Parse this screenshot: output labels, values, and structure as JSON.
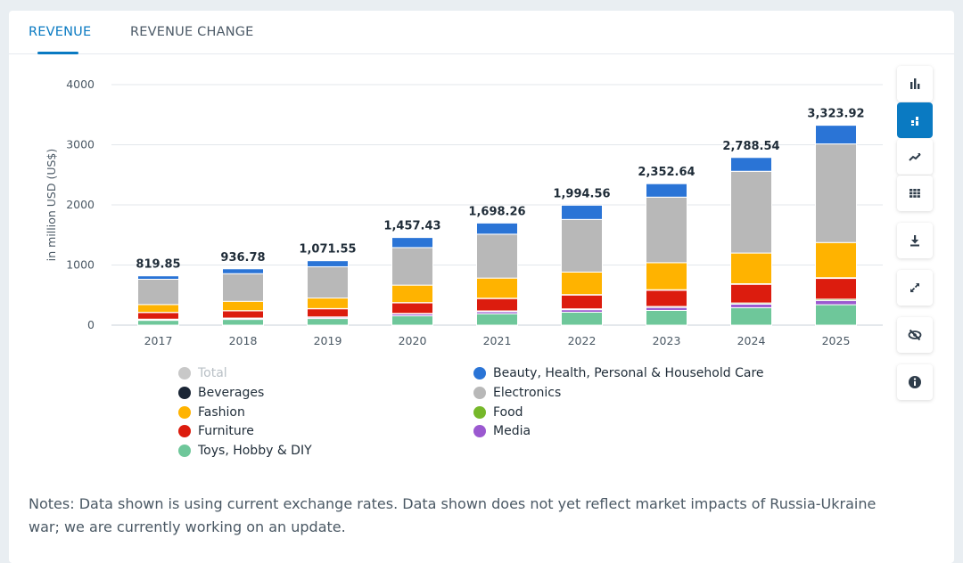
{
  "tabs": [
    {
      "label": "REVENUE",
      "active": true
    },
    {
      "label": "REVENUE CHANGE",
      "active": false
    }
  ],
  "colors": {
    "Total": "#c8c8c8",
    "Beauty, Health, Personal & Household Care": "#2a74d6",
    "Beverages": "#1a2535",
    "Electronics": "#b8b8b8",
    "Fashion": "#ffb300",
    "Food": "#76b82a",
    "Furniture": "#dc1c0e",
    "Media": "#9b59d0",
    "Toys, Hobby & DIY": "#6ec79a"
  },
  "legend": [
    {
      "name": "Total",
      "col": 0,
      "row": 0,
      "dim": true
    },
    {
      "name": "Beverages",
      "col": 0,
      "row": 1
    },
    {
      "name": "Fashion",
      "col": 0,
      "row": 2
    },
    {
      "name": "Furniture",
      "col": 0,
      "row": 3
    },
    {
      "name": "Toys, Hobby & DIY",
      "col": 0,
      "row": 4
    },
    {
      "name": "Beauty, Health, Personal & Household Care",
      "col": 1,
      "row": 0
    },
    {
      "name": "Electronics",
      "col": 1,
      "row": 1
    },
    {
      "name": "Food",
      "col": 1,
      "row": 2
    },
    {
      "name": "Media",
      "col": 1,
      "row": 3
    }
  ],
  "notes": "Notes: Data shown is using current exchange rates. Data shown does not yet reflect market impacts of Russia-Ukraine war; we are currently working on an update.",
  "toolbar": [
    {
      "icon": "bar-chart-icon",
      "active": false
    },
    {
      "icon": "stacked-bar-chart-icon",
      "active": true
    },
    {
      "icon": "line-chart-icon",
      "active": false
    },
    {
      "icon": "table-icon",
      "active": false
    },
    {
      "icon": "download-icon",
      "active": false
    },
    {
      "icon": "fullscreen-icon",
      "active": false
    },
    {
      "icon": "hide-icon",
      "active": false
    },
    {
      "icon": "info-icon",
      "active": false
    }
  ],
  "chart_data": {
    "type": "bar",
    "stacked": true,
    "ylabel": "in million USD (US$)",
    "ylim": [
      0,
      4000
    ],
    "yticks": [
      0,
      1000,
      2000,
      3000,
      4000
    ],
    "grid": true,
    "categories": [
      "2017",
      "2018",
      "2019",
      "2020",
      "2021",
      "2022",
      "2023",
      "2024",
      "2025"
    ],
    "totals": [
      819.85,
      936.78,
      1071.55,
      1457.43,
      1698.26,
      1994.56,
      2352.64,
      2788.54,
      3323.92
    ],
    "total_labels": [
      "819.85",
      "936.78",
      "1,071.55",
      "1,457.43",
      "1,698.26",
      "1,994.56",
      "2,352.64",
      "2,788.54",
      "3,323.92"
    ],
    "series": [
      {
        "name": "Toys, Hobby & DIY",
        "values": [
          80,
          95,
          110,
          155,
          190,
          215,
          245,
          290,
          340
        ]
      },
      {
        "name": "Media",
        "values": [
          15,
          17,
          20,
          30,
          35,
          42,
          50,
          60,
          70
        ]
      },
      {
        "name": "Food",
        "values": [
          5,
          6,
          7,
          10,
          12,
          14,
          16,
          19,
          22
        ]
      },
      {
        "name": "Furniture",
        "values": [
          110,
          120,
          135,
          175,
          205,
          230,
          270,
          310,
          345
        ]
      },
      {
        "name": "Beverages",
        "values": [
          3,
          3,
          4,
          5,
          6,
          7,
          8,
          10,
          12
        ]
      },
      {
        "name": "Fashion",
        "values": [
          130,
          155,
          175,
          290,
          335,
          375,
          450,
          510,
          585
        ]
      },
      {
        "name": "Electronics",
        "values": [
          420,
          460,
          520,
          625,
          730,
          875,
          1090,
          1360,
          1640
        ]
      },
      {
        "name": "Beauty, Health, Personal & Household Care",
        "values": [
          56.85,
          80.78,
          100.55,
          167.43,
          185.26,
          236.56,
          223.64,
          229.54,
          309.92
        ]
      }
    ]
  }
}
